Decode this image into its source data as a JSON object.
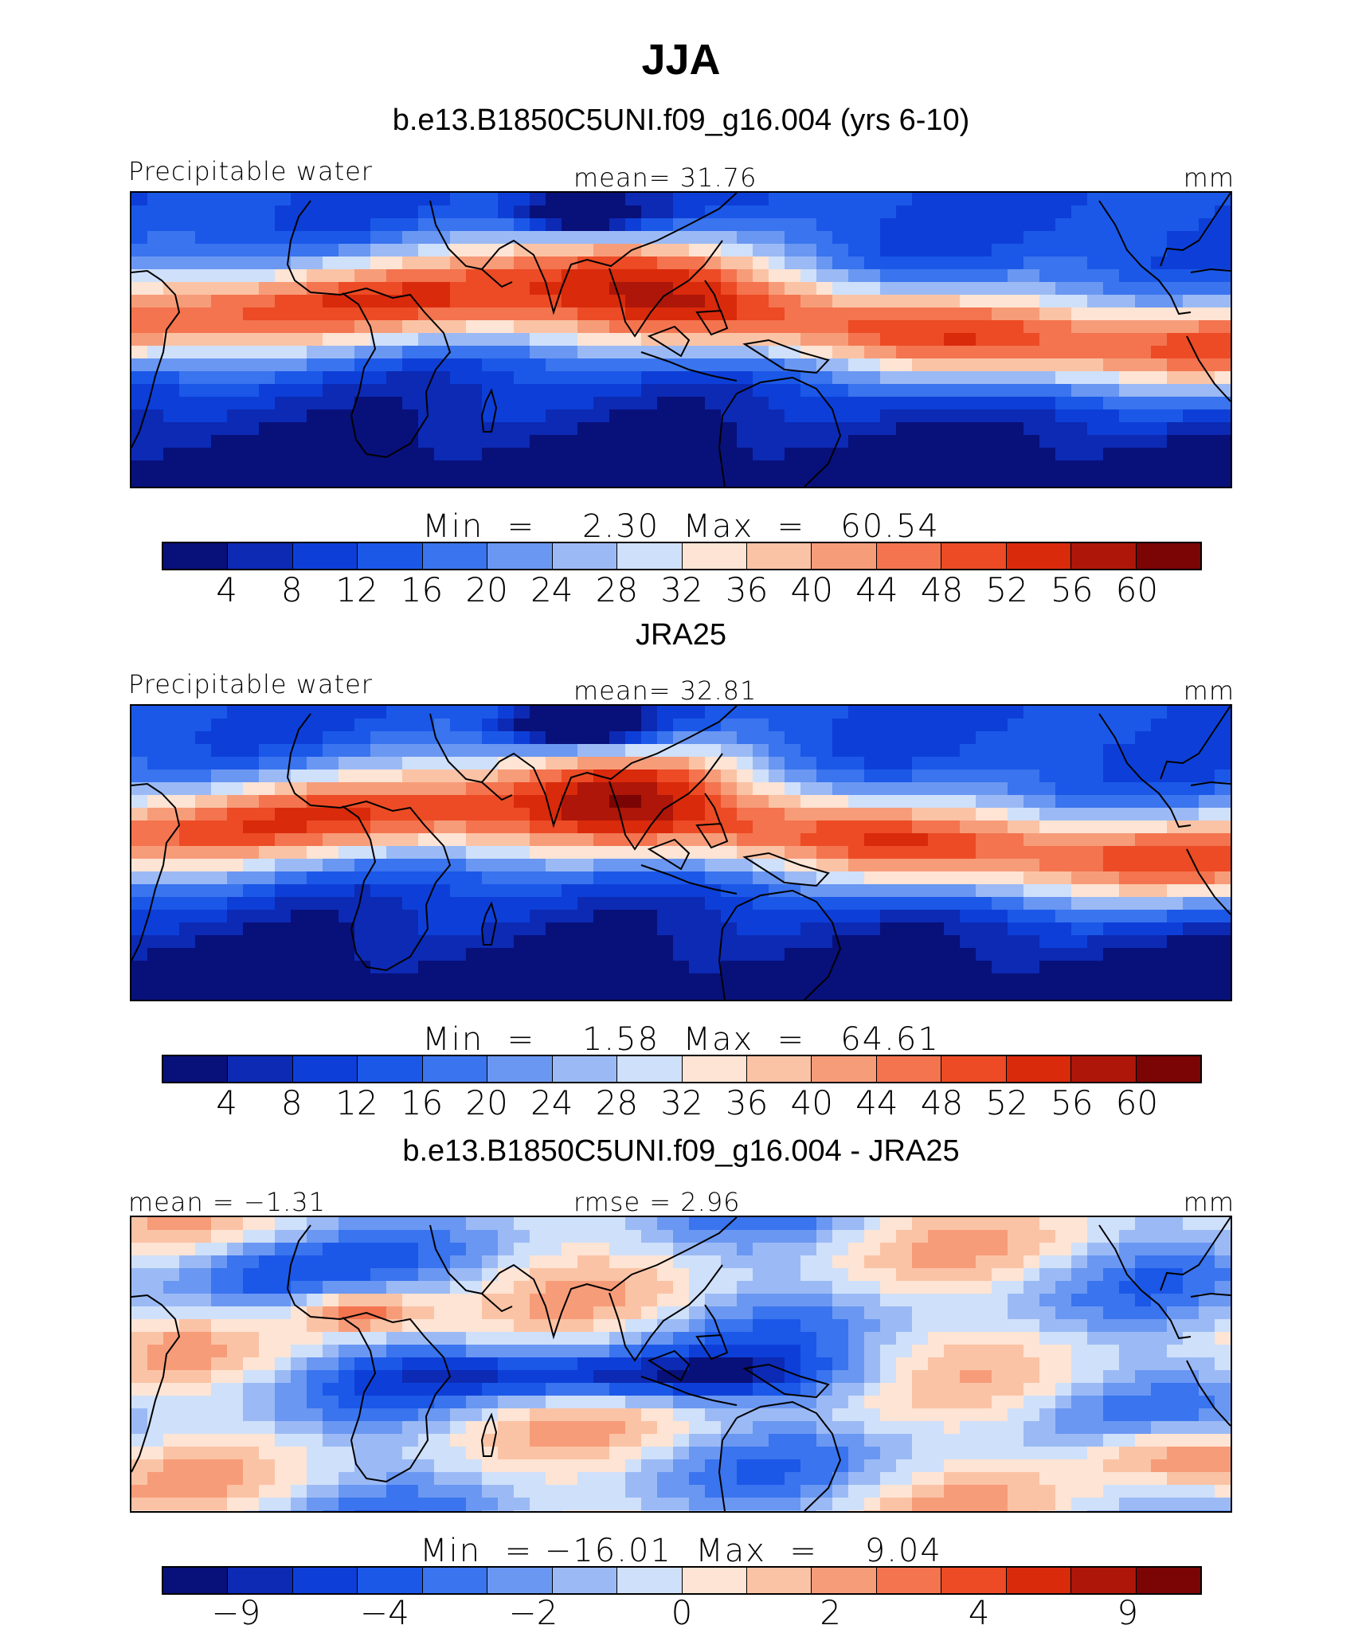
{
  "figure": {
    "title": "JJA"
  },
  "panels": [
    {
      "title": "b.e13.B1850C5UNI.f09_g16.004 (yrs 6-10)",
      "left_label": "Precipitable water",
      "center_label": "mean=   31.76",
      "right_label": "mm",
      "minmax": "Min  =    2.30  Max  =   60.54",
      "field": "pw_model"
    },
    {
      "title": "JRA25",
      "left_label": "Precipitable water",
      "center_label": "mean=   32.81",
      "right_label": "mm",
      "minmax": "Min  =    1.58  Max  =   64.61",
      "field": "pw_obs"
    },
    {
      "title": "b.e13.B1850C5UNI.f09_g16.004 - JRA25",
      "left_label": "mean =  −1.31",
      "center_label": "rmse =    2.96",
      "right_label": "mm",
      "minmax": "Min  = −16.01  Max  =    9.04",
      "field": "pw_diff"
    }
  ],
  "colorbars": [
    {
      "colors": [
        "#08107a",
        "#0c2ab4",
        "#0d3fd8",
        "#1b58e8",
        "#3a74ee",
        "#6a97f2",
        "#9bbaf5",
        "#cfe0fa",
        "#fde4d4",
        "#fbc3a5",
        "#f79c79",
        "#f3744f",
        "#ec4b25",
        "#d92a0c",
        "#ad1608",
        "#7b0504"
      ],
      "tick_labels": [
        "4",
        "8",
        "12",
        "16",
        "20",
        "24",
        "28",
        "32",
        "36",
        "40",
        "44",
        "48",
        "52",
        "56",
        "60"
      ]
    },
    {
      "colors": [
        "#08107a",
        "#0c2ab4",
        "#0d3fd8",
        "#1b58e8",
        "#3a74ee",
        "#6a97f2",
        "#9bbaf5",
        "#cfe0fa",
        "#fde4d4",
        "#fbc3a5",
        "#f79c79",
        "#f3744f",
        "#ec4b25",
        "#d92a0c",
        "#ad1608",
        "#7b0504"
      ],
      "tick_labels": [
        "4",
        "8",
        "12",
        "16",
        "20",
        "24",
        "28",
        "32",
        "36",
        "40",
        "44",
        "48",
        "52",
        "56",
        "60"
      ]
    },
    {
      "colors": [
        "#08107a",
        "#0c2ab4",
        "#0d3fd8",
        "#1b58e8",
        "#3a74ee",
        "#6a97f2",
        "#9bbaf5",
        "#cfe0fa",
        "#fde4d4",
        "#fbc3a5",
        "#f79c79",
        "#f3744f",
        "#ec4b25",
        "#d92a0c",
        "#ad1608",
        "#7b0504"
      ],
      "tick_labels": [
        "−9",
        "−4",
        "−2",
        "0",
        "2",
        "4",
        "9"
      ]
    }
  ]
}
